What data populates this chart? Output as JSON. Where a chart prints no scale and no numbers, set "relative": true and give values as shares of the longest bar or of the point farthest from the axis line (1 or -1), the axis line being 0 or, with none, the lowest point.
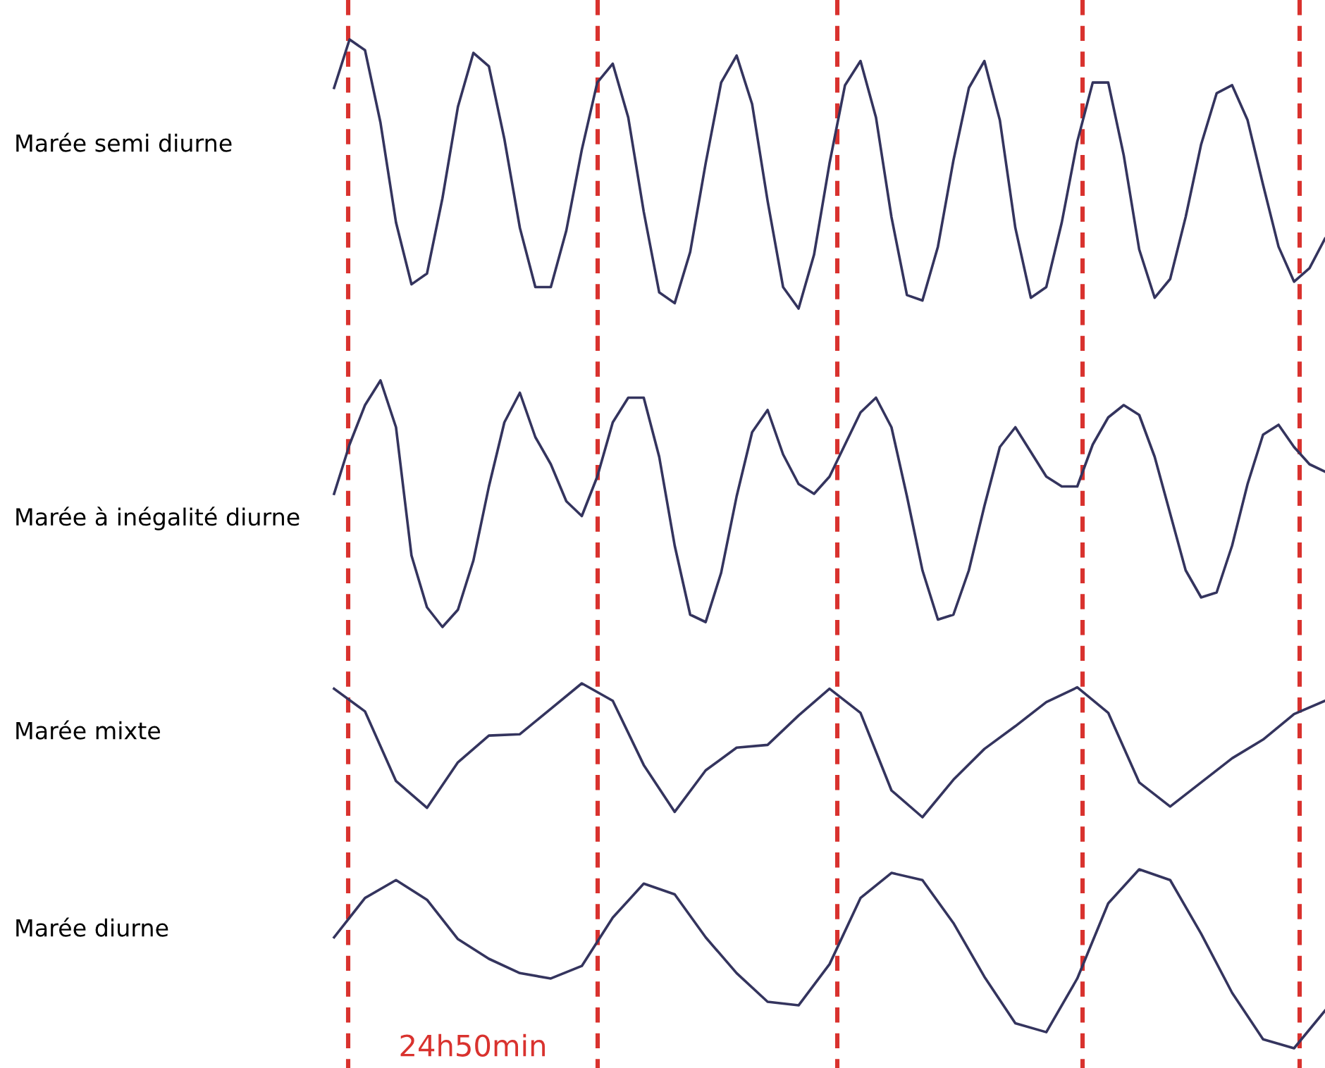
{
  "chart_data": [
    {
      "type": "line",
      "ylabel": "Marée semi diurne",
      "relative": true,
      "categories": [
        null,
        null,
        null,
        null,
        null,
        null,
        null,
        null,
        null,
        null,
        null,
        null,
        null,
        null,
        null,
        null,
        null,
        null,
        null,
        null,
        null,
        null,
        null,
        null,
        null,
        null,
        null,
        null,
        null,
        null,
        null,
        null,
        null,
        null,
        null,
        null,
        null,
        null,
        null,
        null,
        null,
        null,
        null,
        null,
        null,
        null,
        null,
        null,
        null,
        null,
        null,
        null,
        null,
        null,
        null,
        null,
        null,
        null,
        null,
        null,
        null,
        null,
        null,
        null,
        null
      ],
      "series": [
        {
          "color": "#34345e",
          "values": [
            0.82,
            1.0,
            0.96,
            0.69,
            0.32,
            0.09,
            0.13,
            0.41,
            0.75,
            0.95,
            0.9,
            0.63,
            0.3,
            0.08,
            0.08,
            0.29,
            0.59,
            0.84,
            0.91,
            0.71,
            0.36,
            0.06,
            0.02,
            0.21,
            0.54,
            0.84,
            0.94,
            0.76,
            0.4,
            0.08,
            0.0,
            0.2,
            0.54,
            0.83,
            0.92,
            0.71,
            0.34,
            0.05,
            0.03,
            0.23,
            0.55,
            0.82,
            0.92,
            0.7,
            0.3,
            0.04,
            0.08,
            0.32,
            0.62,
            0.84,
            0.84,
            0.57,
            0.22,
            0.04,
            0.11,
            0.34,
            0.61,
            0.8,
            0.83,
            0.7,
            0.46,
            0.23,
            0.1,
            0.15,
            0.26
          ]
        }
      ]
    },
    {
      "type": "line",
      "ylabel": "Marée à inégalité diurne",
      "relative": true,
      "categories": [
        null,
        null,
        null,
        null,
        null,
        null,
        null,
        null,
        null,
        null,
        null,
        null,
        null,
        null,
        null,
        null,
        null,
        null,
        null,
        null,
        null,
        null,
        null,
        null,
        null,
        null,
        null,
        null,
        null,
        null,
        null,
        null,
        null,
        null,
        null,
        null,
        null,
        null,
        null,
        null,
        null,
        null,
        null,
        null,
        null,
        null,
        null,
        null,
        null,
        null,
        null,
        null,
        null,
        null,
        null,
        null,
        null,
        null,
        null,
        null,
        null,
        null,
        null,
        null,
        null
      ],
      "series": [
        {
          "color": "#34345e",
          "values": [
            0.54,
            0.74,
            0.9,
            1.0,
            0.81,
            0.29,
            0.08,
            0.0,
            0.07,
            0.27,
            0.57,
            0.83,
            0.95,
            0.77,
            0.66,
            0.51,
            0.45,
            0.61,
            0.83,
            0.93,
            0.93,
            0.69,
            0.33,
            0.05,
            0.02,
            0.22,
            0.53,
            0.79,
            0.88,
            0.7,
            0.58,
            0.54,
            0.61,
            0.74,
            0.87,
            0.93,
            0.81,
            0.53,
            0.23,
            0.03,
            0.05,
            0.23,
            0.49,
            0.73,
            0.81,
            0.71,
            0.61,
            0.57,
            0.57,
            0.74,
            0.85,
            0.9,
            0.86,
            0.69,
            0.46,
            0.23,
            0.12,
            0.14,
            0.33,
            0.58,
            0.78,
            0.82,
            0.73,
            0.66,
            0.63
          ]
        }
      ]
    },
    {
      "type": "line",
      "ylabel": "Marée mixte",
      "relative": true,
      "categories": [
        null,
        null,
        null,
        null,
        null,
        null,
        null,
        null,
        null,
        null,
        null,
        null,
        null,
        null,
        null,
        null,
        null,
        null,
        null,
        null,
        null,
        null,
        null,
        null,
        null,
        null,
        null,
        null,
        null,
        null,
        null,
        null,
        null
      ],
      "series": [
        {
          "color": "#34345e",
          "values": [
            0.96,
            0.79,
            0.27,
            0.07,
            0.41,
            0.61,
            0.62,
            0.81,
            1.0,
            0.87,
            0.39,
            0.04,
            0.35,
            0.52,
            0.54,
            0.76,
            0.96,
            0.78,
            0.2,
            0.0,
            0.28,
            0.51,
            0.68,
            0.86,
            0.97,
            0.78,
            0.26,
            0.08,
            0.26,
            0.44,
            0.58,
            0.77,
            0.87
          ]
        }
      ]
    },
    {
      "type": "line",
      "ylabel": "Marée diurne",
      "relative": true,
      "categories": [
        null,
        null,
        null,
        null,
        null,
        null,
        null,
        null,
        null,
        null,
        null,
        null,
        null,
        null,
        null,
        null,
        null,
        null,
        null,
        null,
        null,
        null,
        null,
        null,
        null,
        null,
        null,
        null,
        null,
        null,
        null,
        null,
        null
      ],
      "series": [
        {
          "color": "#34345e",
          "values": [
            0.62,
            0.84,
            0.94,
            0.83,
            0.61,
            0.5,
            0.42,
            0.39,
            0.46,
            0.73,
            0.92,
            0.86,
            0.62,
            0.42,
            0.26,
            0.24,
            0.47,
            0.84,
            0.98,
            0.94,
            0.7,
            0.4,
            0.14,
            0.09,
            0.39,
            0.81,
            1.0,
            0.94,
            0.64,
            0.31,
            0.05,
            0.0,
            0.21
          ]
        }
      ],
      "annotations": [
        "24h50min"
      ]
    }
  ]
}
